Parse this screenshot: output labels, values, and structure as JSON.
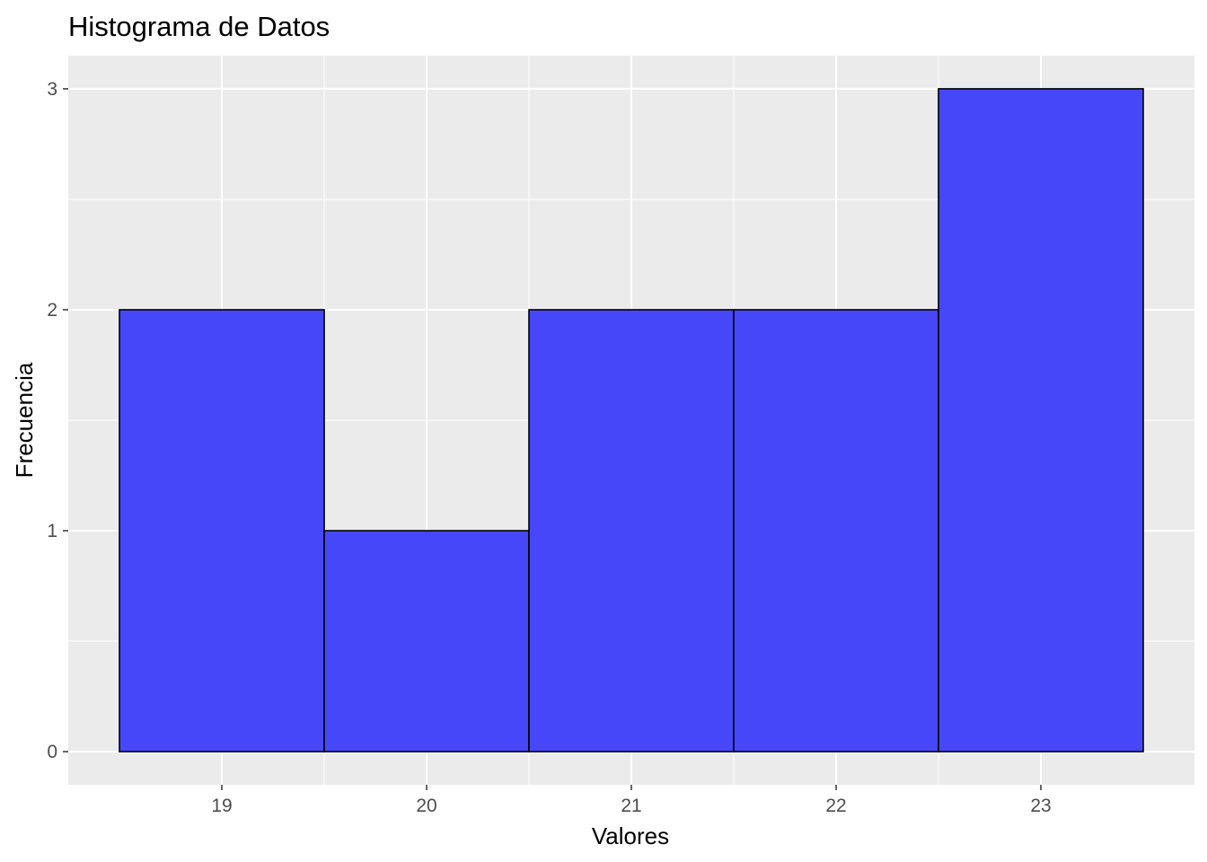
{
  "chart_data": {
    "type": "bar",
    "title": "Histograma de Datos",
    "xlabel": "Valores",
    "ylabel": "Frecuencia",
    "categories": [
      "19",
      "20",
      "21",
      "22",
      "23"
    ],
    "bins": [
      {
        "x_start": 18.5,
        "x_end": 19.5,
        "count": 2
      },
      {
        "x_start": 19.5,
        "x_end": 20.5,
        "count": 1
      },
      {
        "x_start": 20.5,
        "x_end": 21.5,
        "count": 2
      },
      {
        "x_start": 21.5,
        "x_end": 22.5,
        "count": 2
      },
      {
        "x_start": 22.5,
        "x_end": 23.5,
        "count": 3
      }
    ],
    "values": [
      2,
      1,
      2,
      2,
      3
    ],
    "x_ticks": [
      19,
      20,
      21,
      22,
      23
    ],
    "y_ticks": [
      0,
      1,
      2,
      3
    ],
    "xlim": [
      18.25,
      23.75
    ],
    "ylim": [
      -0.15,
      3.15
    ],
    "grid": true,
    "bar_fill": "#4747FA",
    "bar_stroke": "#000000",
    "panel_background": "#EBEBEB",
    "grid_color": "#FFFFFF"
  }
}
